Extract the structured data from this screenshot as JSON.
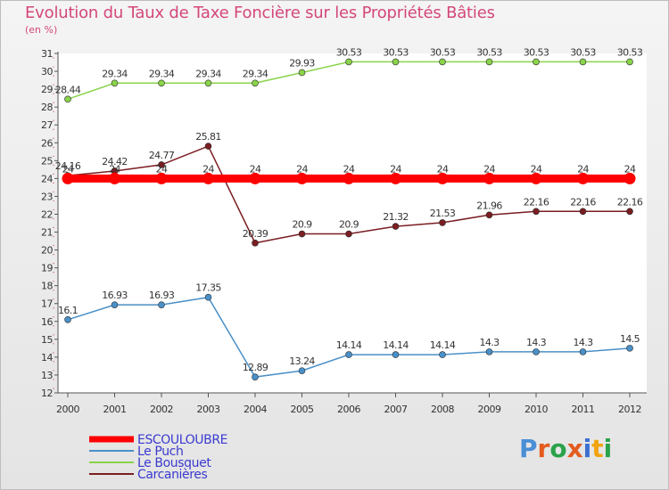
{
  "title": "Evolution du Taux de Taxe Foncière sur les Propriétés Bâties",
  "unit_label": "(en %)",
  "logo_text": "Proxiti",
  "logo_colors": [
    "#4a8fd6",
    "#e35b1f",
    "#2aa24b",
    "#e35b1f",
    "#3c6fd0",
    "#f2a40f",
    "#2aa24b"
  ],
  "chart_data": {
    "type": "line",
    "title": "Evolution du Taux de Taxe Foncière sur les Propriétés Bâties",
    "ylabel": "(en %)",
    "xlabel": "",
    "categories": [
      "2000",
      "2001",
      "2002",
      "2003",
      "2004",
      "2005",
      "2006",
      "2007",
      "2008",
      "2009",
      "2010",
      "2011",
      "2012"
    ],
    "ylim": [
      12,
      31
    ],
    "yticks": [
      12,
      13,
      14,
      15,
      16,
      17,
      18,
      19,
      20,
      21,
      22,
      23,
      24,
      25,
      26,
      27,
      28,
      29,
      30,
      31
    ],
    "grid": false,
    "series": [
      {
        "name": "ESCOULOUBRE",
        "color": "#ff0000",
        "thick": true,
        "values": [
          24,
          24,
          24,
          24,
          24,
          24,
          24,
          24,
          24,
          24,
          24,
          24,
          24
        ],
        "labels": [
          "24",
          "24",
          "24",
          "24",
          "24",
          "24",
          "24",
          "24",
          "24",
          "24",
          "24",
          "24",
          "24"
        ]
      },
      {
        "name": "Le Puch",
        "color": "#4a90c8",
        "thick": false,
        "values": [
          16.1,
          16.93,
          16.93,
          17.35,
          12.89,
          13.24,
          14.14,
          14.14,
          14.14,
          14.3,
          14.3,
          14.3,
          14.5
        ],
        "labels": [
          "16.1",
          "16.93",
          "16.93",
          "17.35",
          "12.89",
          "13.24",
          "14.14",
          "14.14",
          "14.14",
          "14.3",
          "14.3",
          "14.3",
          "14.5"
        ]
      },
      {
        "name": "Le Bousquet",
        "color": "#8ad34a",
        "thick": false,
        "values": [
          28.44,
          29.34,
          29.34,
          29.34,
          29.34,
          29.93,
          30.53,
          30.53,
          30.53,
          30.53,
          30.53,
          30.53,
          30.53
        ],
        "labels": [
          "28.44",
          "29.34",
          "29.34",
          "29.34",
          "29.34",
          "29.93",
          "30.53",
          "30.53",
          "30.53",
          "30.53",
          "30.53",
          "30.53",
          "30.53"
        ]
      },
      {
        "name": "Carcanières",
        "color": "#7a1e22",
        "thick": false,
        "values": [
          24.16,
          24.42,
          24.77,
          25.81,
          20.39,
          20.9,
          20.9,
          21.32,
          21.53,
          21.96,
          22.16,
          22.16,
          22.16
        ],
        "labels": [
          "24.16",
          "24.42",
          "24.77",
          "25.81",
          "20.39",
          "20.9",
          "20.9",
          "21.32",
          "21.53",
          "21.96",
          "22.16",
          "22.16",
          "22.16"
        ]
      }
    ]
  }
}
